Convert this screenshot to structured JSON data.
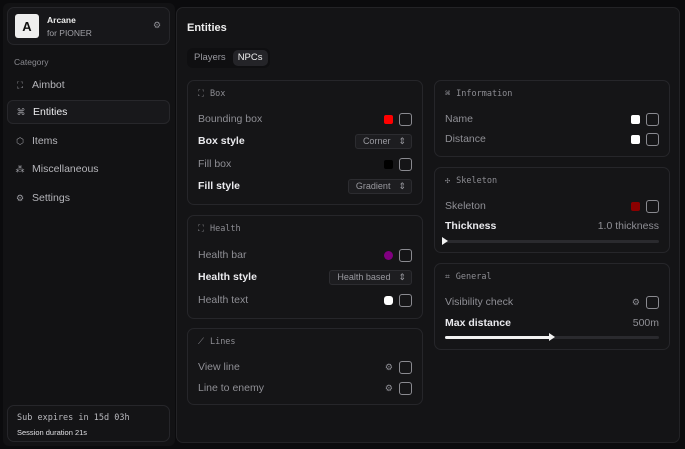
{
  "app": {
    "name": "Arcane",
    "subtitle": "for PIONER",
    "logo_letter": "A"
  },
  "sidebar": {
    "category_label": "Category",
    "items": [
      {
        "label": "Aimbot",
        "icon": "crosshair-icon"
      },
      {
        "label": "Entities",
        "icon": "entities-icon",
        "active": true
      },
      {
        "label": "Items",
        "icon": "box-icon"
      },
      {
        "label": "Miscellaneous",
        "icon": "misc-icon"
      },
      {
        "label": "Settings",
        "icon": "gear-icon"
      }
    ],
    "footer": {
      "sub": "Sub expires in 15d 03h",
      "session": "Session duration 21s"
    }
  },
  "main": {
    "title": "Entities",
    "tabs": [
      {
        "label": "Players"
      },
      {
        "label": "NPCs",
        "active": true
      }
    ]
  },
  "box": {
    "title": "Box",
    "bounding": "Bounding box",
    "bounding_color": "#ff0000",
    "box_style": "Box style",
    "box_style_value": "Corner",
    "fill_box": "Fill box",
    "fill_color": "#000000",
    "fill_style": "Fill style",
    "fill_style_value": "Gradient"
  },
  "health": {
    "title": "Health",
    "bar": "Health bar",
    "bar_color": "#800080",
    "style": "Health style",
    "style_value": "Health based",
    "text": "Health text",
    "text_color": "#ffffff"
  },
  "lines": {
    "title": "Lines",
    "view": "View line",
    "enemy": "Line to enemy"
  },
  "info": {
    "title": "Information",
    "name": "Name",
    "name_color": "#ffffff",
    "distance": "Distance",
    "distance_color": "#ffffff"
  },
  "skeleton": {
    "title": "Skeleton",
    "skeleton": "Skeleton",
    "color": "#8b0000",
    "thickness": "Thickness",
    "thickness_value": "1.0 thickness",
    "thickness_fraction": 0
  },
  "general": {
    "title": "General",
    "visibility": "Visibility check",
    "max": "Max distance",
    "max_value": "500m",
    "max_fraction": 0.5
  }
}
